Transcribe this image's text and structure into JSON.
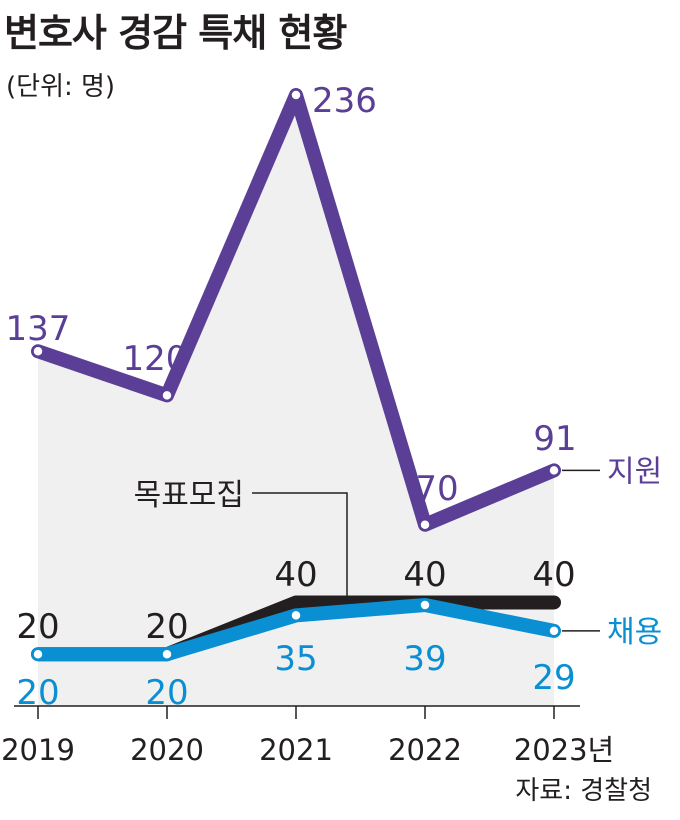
{
  "title": "변호사 경감 특채 현황",
  "unit": "(단위: 명)",
  "source": "자료: 경찰청",
  "colors": {
    "support": "#5b3f96",
    "target": "#231f20",
    "hired": "#0b8fd3",
    "area": "#f0f0f0",
    "axis": "#231f20"
  },
  "chart_data": {
    "type": "line",
    "categories": [
      "2019",
      "2020",
      "2021",
      "2022",
      "2023년"
    ],
    "series": [
      {
        "name": "지원",
        "values": [
          137,
          120,
          236,
          70,
          91
        ]
      },
      {
        "name": "목표모집",
        "values": [
          20,
          20,
          40,
          40,
          40
        ]
      },
      {
        "name": "채용",
        "values": [
          20,
          20,
          35,
          39,
          29
        ]
      }
    ],
    "xlabel": "",
    "ylabel": "",
    "legend": "labels at line ends (right)",
    "grid": false
  }
}
